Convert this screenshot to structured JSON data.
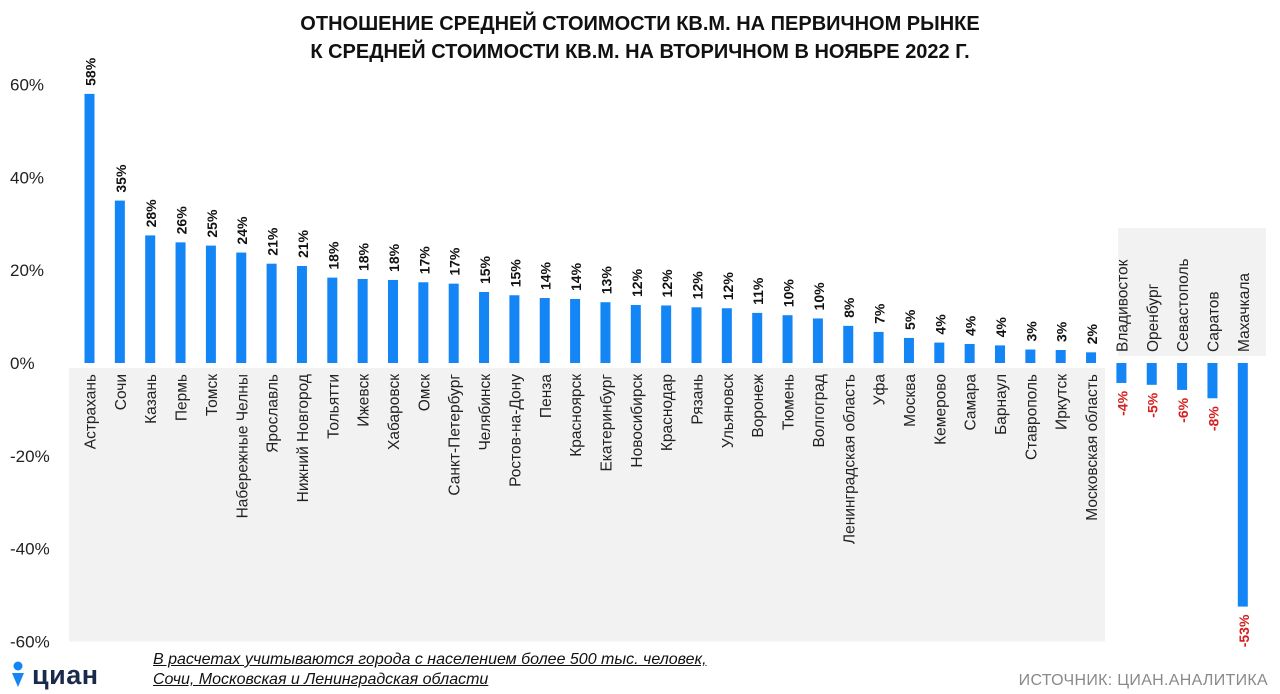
{
  "title": {
    "line1": "ОТНОШЕНИЕ СРЕДНЕЙ СТОИМОСТИ КВ.М. НА ПЕРВИЧНОМ РЫНКЕ",
    "line2": "К СРЕДНЕЙ СТОИМОСТИ КВ.М. НА ВТОРИЧНОМ В НОЯБРЕ 2022 Г."
  },
  "note": {
    "line1": "В расчетах учитываются города с населением более 500 тыс. человек,",
    "line2": "Сочи, Московская и Ленинградская области"
  },
  "source": "ИСТОЧНИК: ЦИАН.АНАЛИТИКА",
  "logo": {
    "text": "циан",
    "icon": "person-pin-icon"
  },
  "colors": {
    "positive_bar": "#1485f5",
    "negative_bar": "#1485f5",
    "negative_label": "#d81e1e",
    "panel": "#f2f2f2"
  },
  "chart_data": {
    "type": "bar",
    "ylim": [
      -60,
      60
    ],
    "yticks": [
      60,
      40,
      20,
      0,
      -20,
      -40,
      -60
    ],
    "ytick_labels": [
      "60%",
      "40%",
      "20%",
      "0%",
      "-20%",
      "-40%",
      "-60%"
    ],
    "grid": false,
    "categories": [
      "Астрахань",
      "Сочи",
      "Казань",
      "Пермь",
      "Томск",
      "Набережные Челны",
      "Ярославль",
      "Нижний Новгород",
      "Тольятти",
      "Ижевск",
      "Хабаровск",
      "Омск",
      "Санкт-Петербург",
      "Челябинск",
      "Ростов-на-Дону",
      "Пенза",
      "Красноярск",
      "Екатеринбург",
      "Новосибирск",
      "Краснодар",
      "Рязань",
      "Ульяновск",
      "Воронеж",
      "Тюмень",
      "Волгоград",
      "Ленинградская область",
      "Уфа",
      "Москва",
      "Кемерово",
      "Самара",
      "Барнаул",
      "Ставрополь",
      "Иркутск",
      "Московская область",
      "Владивосток",
      "Оренбург",
      "Севастополь",
      "Саратов",
      "Махачкала"
    ],
    "values": [
      58,
      35,
      27.5,
      26,
      25.3,
      23.8,
      21.4,
      20.9,
      18.4,
      18.1,
      17.9,
      17.4,
      17.1,
      15.3,
      14.6,
      14,
      13.8,
      13.1,
      12.5,
      12.4,
      12,
      11.8,
      10.8,
      10.3,
      9.6,
      8,
      6.7,
      5.4,
      4.4,
      4.1,
      3.8,
      2.9,
      2.8,
      2.3,
      -4.3,
      -4.7,
      -5.8,
      -7.6,
      -52.5
    ],
    "data_labels": [
      "58%",
      "35%",
      "28%",
      "26%",
      "25%",
      "24%",
      "21%",
      "21%",
      "18%",
      "18%",
      "18%",
      "17%",
      "17%",
      "15%",
      "15%",
      "14%",
      "14%",
      "13%",
      "12%",
      "12%",
      "12%",
      "12%",
      "11%",
      "10%",
      "10%",
      "8%",
      "7%",
      "5%",
      "4%",
      "4%",
      "4%",
      "3%",
      "3%",
      "2%",
      "-4%",
      "-5%",
      "-6%",
      "-8%",
      "-53%"
    ]
  }
}
